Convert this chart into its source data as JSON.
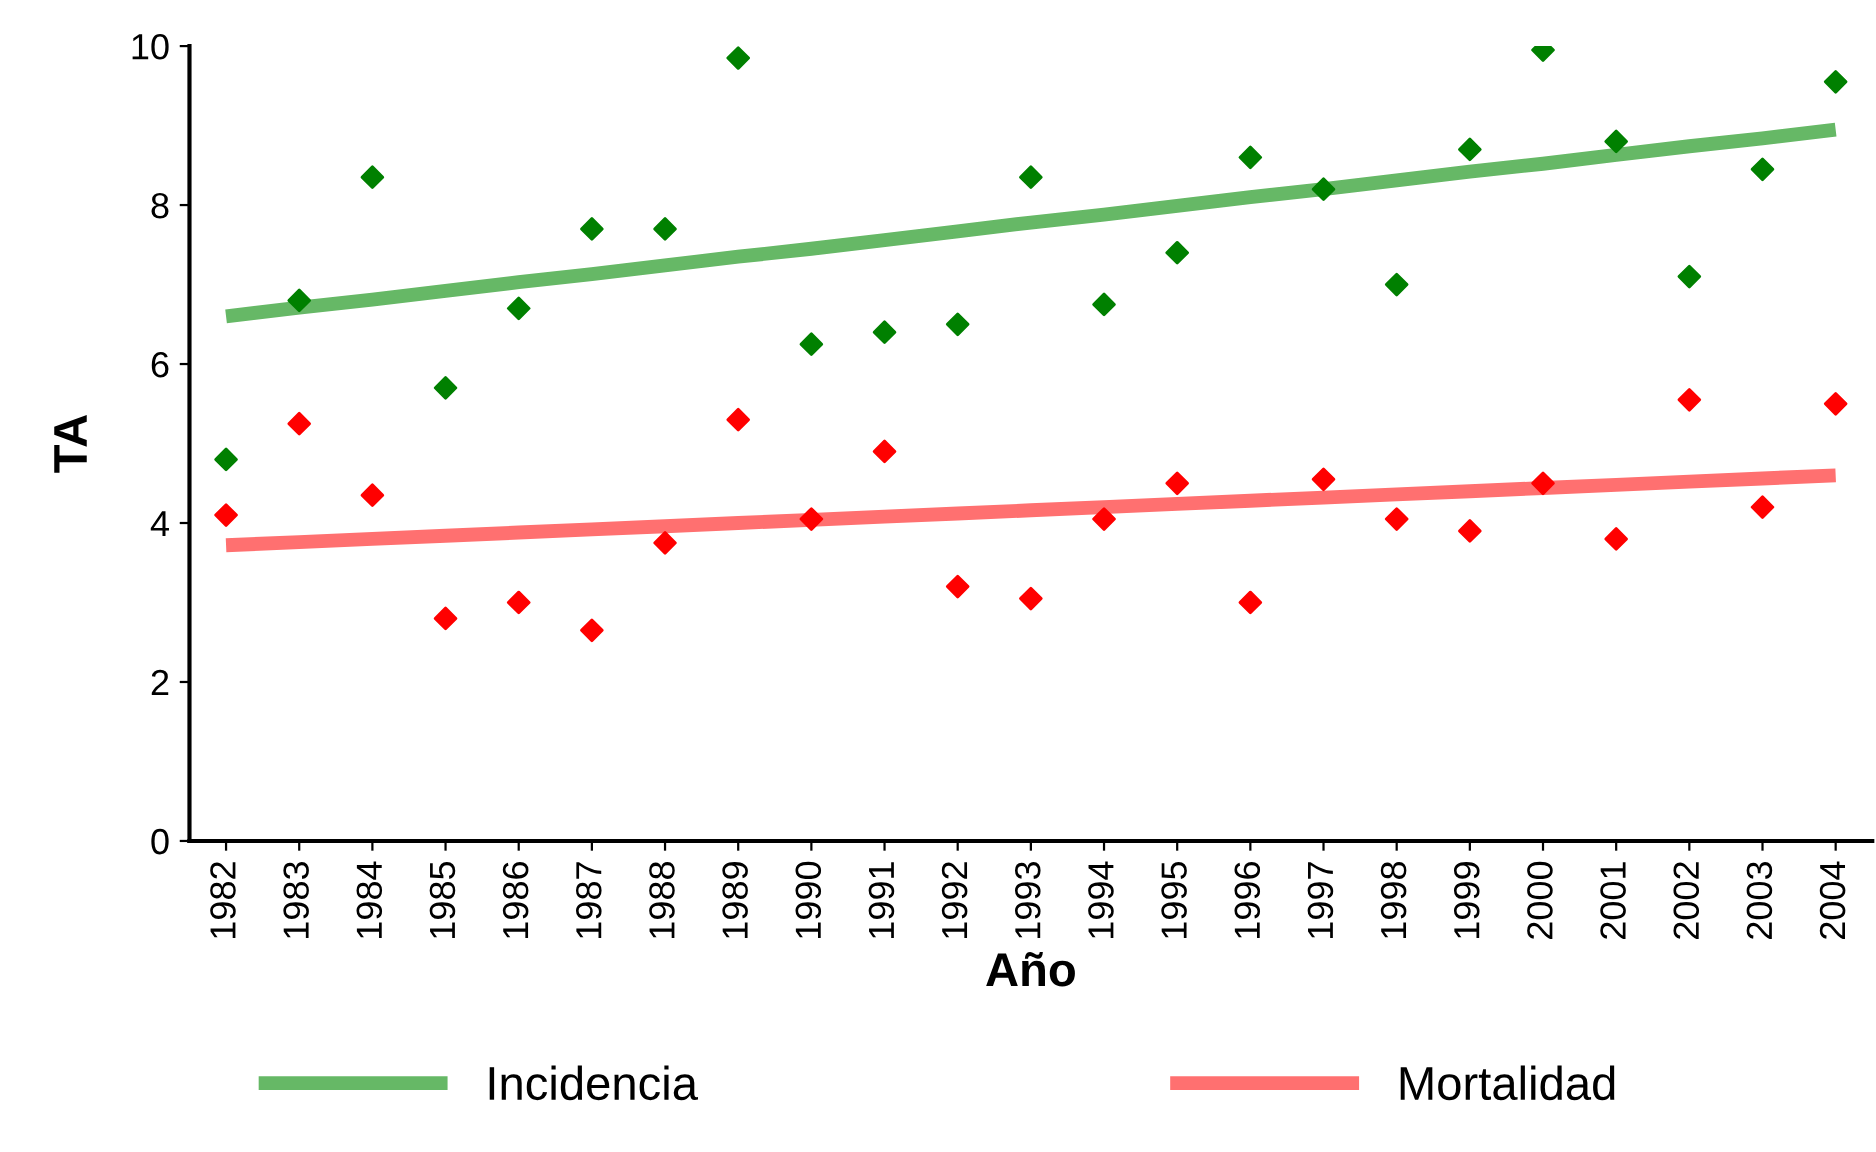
{
  "chart_data": {
    "type": "scatter",
    "xlabel": "Año",
    "ylabel": "TA",
    "categories": [
      "1982",
      "1983",
      "1984",
      "1985",
      "1986",
      "1987",
      "1988",
      "1989",
      "1990",
      "1991",
      "1992",
      "1993",
      "1994",
      "1995",
      "1996",
      "1997",
      "1998",
      "1999",
      "2000",
      "2001",
      "2002",
      "2003",
      "2004"
    ],
    "series": [
      {
        "color": "#008000",
        "marker": "diamond",
        "values": [
          4.8,
          6.8,
          8.35,
          5.7,
          6.7,
          7.7,
          7.7,
          9.85,
          6.25,
          6.4,
          6.5,
          8.35,
          6.75,
          7.4,
          8.6,
          8.2,
          7.0,
          8.7,
          9.95,
          8.8,
          7.1,
          8.45,
          9.55
        ]
      },
      {
        "color": "#ff0000",
        "marker": "diamond",
        "values": [
          4.1,
          5.25,
          4.35,
          2.8,
          3.0,
          2.65,
          3.75,
          5.3,
          4.05,
          4.9,
          3.2,
          3.05,
          4.05,
          4.5,
          3.0,
          4.55,
          4.05,
          3.9,
          4.5,
          3.8,
          5.55,
          4.2,
          5.5
        ]
      },
      {
        "type": "line",
        "name": "Incidencia",
        "color": "#66b866",
        "values": [
          6.6,
          6.71,
          6.81,
          6.92,
          7.03,
          7.13,
          7.24,
          7.35,
          7.45,
          7.56,
          7.67,
          7.78,
          7.88,
          7.99,
          8.1,
          8.2,
          8.31,
          8.42,
          8.52,
          8.63,
          8.74,
          8.84,
          8.95
        ]
      },
      {
        "type": "line",
        "name": "Mortalidad",
        "color": "#ff7070",
        "values": [
          3.72,
          3.76,
          3.8,
          3.84,
          3.88,
          3.92,
          3.96,
          4.0,
          4.04,
          4.08,
          4.12,
          4.16,
          4.2,
          4.24,
          4.28,
          4.32,
          4.36,
          4.4,
          4.44,
          4.48,
          4.52,
          4.56,
          4.6
        ]
      }
    ],
    "ylim": [
      0,
      10
    ],
    "yticks": [
      0,
      2,
      4,
      6,
      8,
      10
    ],
    "grid": false,
    "legend": "bottom"
  }
}
